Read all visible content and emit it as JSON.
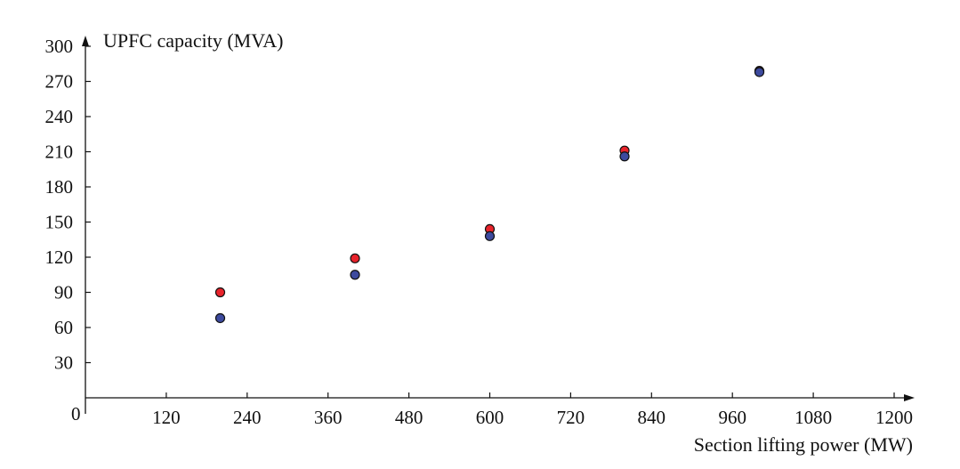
{
  "chart_data": {
    "type": "scatter",
    "title": "",
    "xlabel": "Section lifting power (MW)",
    "ylabel": "UPFC capacity (MVA)",
    "origin_label": "0",
    "xlim": [
      0,
      1230
    ],
    "ylim": [
      0,
      300
    ],
    "xticks": [
      120,
      240,
      360,
      480,
      600,
      720,
      840,
      960,
      1080,
      1200
    ],
    "yticks": [
      30,
      60,
      90,
      120,
      150,
      180,
      210,
      240,
      270,
      300
    ],
    "grid": false,
    "legend": "none",
    "series": [
      {
        "name": "series-red",
        "color": "#e8232b",
        "x": [
          200,
          400,
          600,
          800,
          1000
        ],
        "y": [
          90,
          119,
          144,
          211,
          279
        ]
      },
      {
        "name": "series-blue",
        "color": "#3d4a9e",
        "x": [
          200,
          400,
          600,
          800,
          1000
        ],
        "y": [
          68,
          105,
          138,
          206,
          278
        ]
      }
    ]
  }
}
